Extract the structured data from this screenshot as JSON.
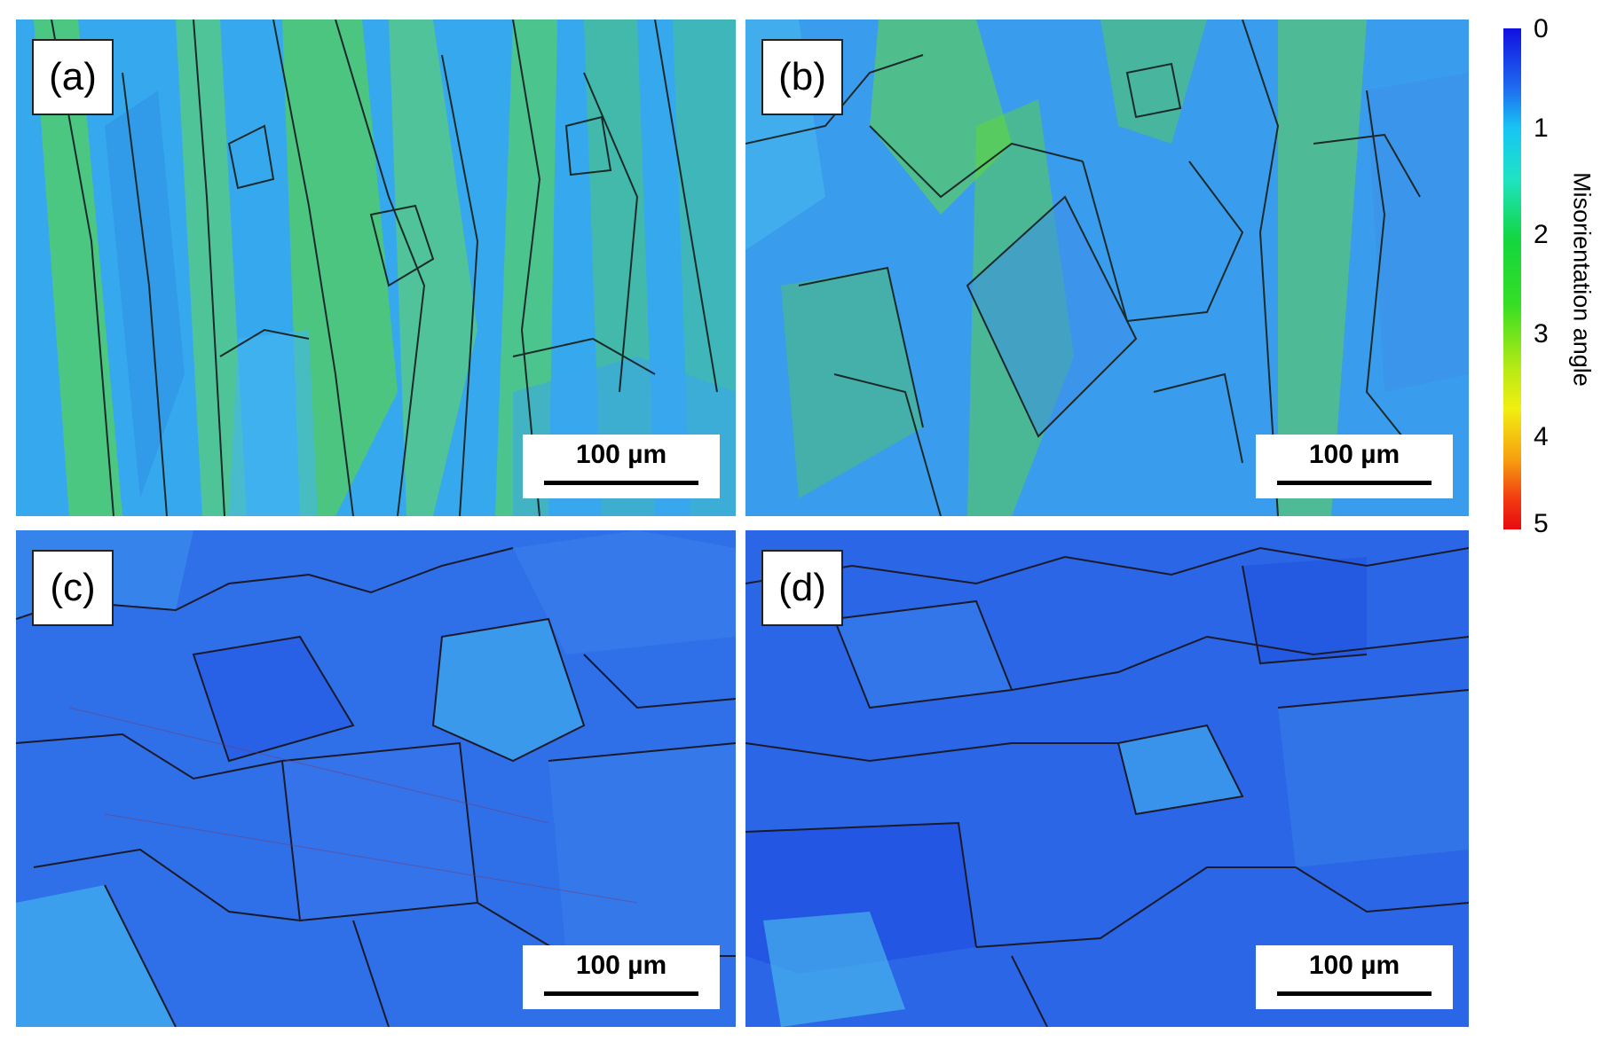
{
  "panels": [
    {
      "label": "(a)",
      "scale_bar": "100 µm"
    },
    {
      "label": "(b)",
      "scale_bar": "100 µm"
    },
    {
      "label": "(c)",
      "scale_bar": "100 µm"
    },
    {
      "label": "(d)",
      "scale_bar": "100 µm"
    }
  ],
  "colorbar": {
    "title": "Misorientation angle",
    "ticks": [
      "0",
      "1",
      "2",
      "3",
      "4",
      "5"
    ],
    "colors": [
      "#1010e0",
      "#17c5f2",
      "#13d640",
      "#35de24",
      "#f2ee10",
      "#e80a10"
    ]
  },
  "map_colors": {
    "a": {
      "base": "#36a9ee",
      "accent": "#5fe02a",
      "boundary": "#1a2a2a"
    },
    "b": {
      "base": "#3a9cec",
      "accent": "#66de2c",
      "boundary": "#1a2a2a"
    },
    "c": {
      "base": "#2f6fe8",
      "accent": "#2fb8ee",
      "boundary": "#1a1a2a"
    },
    "d": {
      "base": "#2b66e6",
      "accent": "#32b2ee",
      "boundary": "#1a1a2a"
    }
  }
}
